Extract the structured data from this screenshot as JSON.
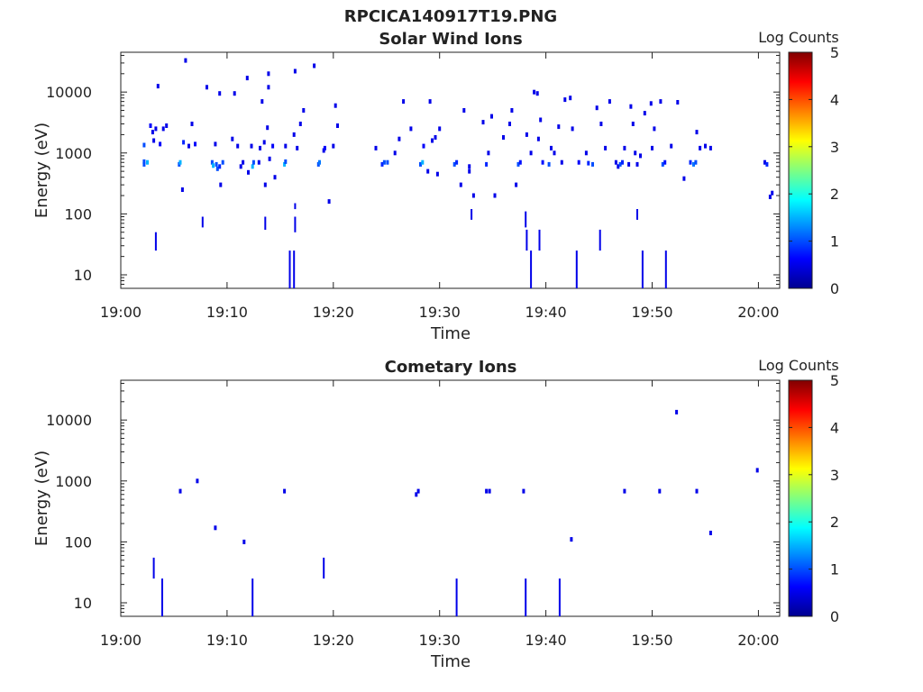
{
  "figure_title": "RPCICA140917T19.PNG",
  "colormap": [
    "#00008f",
    "#0000ff",
    "#0080ff",
    "#00ffff",
    "#80ff80",
    "#ffff00",
    "#ff8000",
    "#ff0000",
    "#800000"
  ],
  "chart_data": [
    {
      "type": "heatmap",
      "title": "Solar Wind Ions",
      "xlabel": "Time",
      "ylabel": "Energy (eV)",
      "x_unit": "minutes after 19:00",
      "xlim": [
        0,
        62
      ],
      "xticks": [
        0,
        10,
        20,
        30,
        40,
        50,
        60
      ],
      "xtick_labels": [
        "19:00",
        "19:10",
        "19:20",
        "19:30",
        "19:40",
        "19:50",
        "20:00"
      ],
      "yscale": "log",
      "ylim": [
        6,
        45000
      ],
      "yticks": [
        10,
        100,
        1000,
        10000
      ],
      "ytick_labels": [
        "10",
        "100",
        "1000",
        "10000"
      ],
      "colorbar": {
        "label": "Log Counts",
        "range": [
          0,
          5
        ],
        "ticks": [
          "0",
          "1",
          "2",
          "3",
          "4",
          "5"
        ]
      },
      "points": [
        [
          2.2,
          650,
          1
        ],
        [
          2.2,
          720,
          1
        ],
        [
          2.2,
          1350,
          1
        ],
        [
          2.5,
          700,
          1.5
        ],
        [
          2.8,
          2800,
          0.6
        ],
        [
          3.0,
          2200,
          0.5
        ],
        [
          3.1,
          1600,
          0.5
        ],
        [
          3.3,
          2500,
          0.5
        ],
        [
          3.5,
          12500,
          0.5
        ],
        [
          3.7,
          1400,
          0.6
        ],
        [
          4.0,
          2500,
          0.5
        ],
        [
          4.3,
          2800,
          0.5
        ],
        [
          5.5,
          650,
          1
        ],
        [
          5.6,
          700,
          1.5
        ],
        [
          5.8,
          250,
          0.5
        ],
        [
          5.9,
          1500,
          0.8
        ],
        [
          6.1,
          33000,
          0.5
        ],
        [
          6.4,
          1300,
          0.5
        ],
        [
          6.7,
          3000,
          0.5
        ],
        [
          7.0,
          1400,
          0.6
        ],
        [
          8.1,
          12000,
          0.5
        ],
        [
          8.6,
          700,
          1
        ],
        [
          8.7,
          620,
          1.5
        ],
        [
          8.9,
          1400,
          0.5
        ],
        [
          9.0,
          650,
          1
        ],
        [
          9.1,
          550,
          1
        ],
        [
          9.3,
          9500,
          0.5
        ],
        [
          9.3,
          600,
          0.8
        ],
        [
          9.4,
          300,
          0.5
        ],
        [
          9.6,
          700,
          1
        ],
        [
          10.5,
          1700,
          0.5
        ],
        [
          10.7,
          9500,
          0.5
        ],
        [
          11.0,
          1300,
          0.5
        ],
        [
          11.3,
          600,
          0.5
        ],
        [
          11.5,
          700,
          0.5
        ],
        [
          11.9,
          17000,
          0.5
        ],
        [
          12.0,
          480,
          0.5
        ],
        [
          12.3,
          1300,
          0.5
        ],
        [
          12.4,
          600,
          1.5
        ],
        [
          12.5,
          700,
          1
        ],
        [
          13.0,
          700,
          0.5
        ],
        [
          13.1,
          1200,
          0.5
        ],
        [
          13.3,
          7000,
          0.5
        ],
        [
          13.5,
          1500,
          0.5
        ],
        [
          13.6,
          300,
          0.5
        ],
        [
          13.9,
          20000,
          0.5
        ],
        [
          13.8,
          2600,
          0.5
        ],
        [
          13.9,
          12000,
          0.5
        ],
        [
          14.0,
          800,
          0.5
        ],
        [
          14.3,
          1300,
          0.6
        ],
        [
          14.5,
          400,
          0.5
        ],
        [
          15.4,
          650,
          1.5
        ],
        [
          15.5,
          720,
          1
        ],
        [
          15.5,
          1300,
          0.5
        ],
        [
          16.3,
          2000,
          0.5
        ],
        [
          16.4,
          22000,
          0.5
        ],
        [
          16.6,
          1200,
          0.5
        ],
        [
          16.9,
          3000,
          0.5
        ],
        [
          17.2,
          5000,
          0.5
        ],
        [
          18.2,
          27000,
          0.5
        ],
        [
          18.6,
          650,
          1
        ],
        [
          18.7,
          700,
          1.2
        ],
        [
          19.1,
          1100,
          0.5
        ],
        [
          19.2,
          1200,
          0.6
        ],
        [
          19.6,
          160,
          0.5
        ],
        [
          20.0,
          1300,
          0.5
        ],
        [
          20.2,
          6000,
          0.5
        ],
        [
          20.4,
          2800,
          0.5
        ],
        [
          24.0,
          1200,
          0.5
        ],
        [
          24.6,
          650,
          0.8
        ],
        [
          24.8,
          700,
          1
        ],
        [
          25.1,
          700,
          1
        ],
        [
          25.8,
          1000,
          0.5
        ],
        [
          26.2,
          1700,
          0.5
        ],
        [
          26.6,
          7000,
          0.5
        ],
        [
          27.3,
          2500,
          0.5
        ],
        [
          28.2,
          650,
          1
        ],
        [
          28.4,
          700,
          1.5
        ],
        [
          28.5,
          1300,
          0.6
        ],
        [
          28.9,
          500,
          0.5
        ],
        [
          29.1,
          7000,
          0.5
        ],
        [
          29.3,
          1600,
          0.5
        ],
        [
          29.6,
          1800,
          0.5
        ],
        [
          29.8,
          450,
          0.5
        ],
        [
          30.0,
          2500,
          0.5
        ],
        [
          31.4,
          650,
          1
        ],
        [
          31.6,
          700,
          0.8
        ],
        [
          32.0,
          300,
          0.5
        ],
        [
          32.3,
          5000,
          0.5
        ],
        [
          32.8,
          500,
          0.5
        ],
        [
          32.8,
          600,
          0.5
        ],
        [
          33.2,
          200,
          0.5
        ],
        [
          34.1,
          3200,
          0.5
        ],
        [
          34.4,
          650,
          0.8
        ],
        [
          34.6,
          1000,
          0.5
        ],
        [
          34.9,
          4000,
          0.5
        ],
        [
          35.2,
          200,
          0.5
        ],
        [
          36.0,
          1800,
          0.5
        ],
        [
          36.6,
          3000,
          0.5
        ],
        [
          36.8,
          5000,
          0.5
        ],
        [
          37.2,
          300,
          0.5
        ],
        [
          37.4,
          650,
          1
        ],
        [
          37.6,
          700,
          0.7
        ],
        [
          38.2,
          2000,
          0.5
        ],
        [
          38.6,
          1000,
          0.5
        ],
        [
          38.9,
          10000,
          0.5
        ],
        [
          39.2,
          9500,
          0.5
        ],
        [
          39.3,
          1700,
          0.5
        ],
        [
          39.5,
          3500,
          0.5
        ],
        [
          39.7,
          700,
          0.7
        ],
        [
          40.3,
          650,
          1
        ],
        [
          40.5,
          1200,
          0.5
        ],
        [
          40.8,
          1000,
          0.5
        ],
        [
          41.2,
          2700,
          0.5
        ],
        [
          41.5,
          700,
          0.5
        ],
        [
          41.8,
          7500,
          0.5
        ],
        [
          42.3,
          8000,
          0.5
        ],
        [
          42.5,
          2500,
          0.5
        ],
        [
          43.1,
          700,
          0.6
        ],
        [
          43.8,
          1000,
          0.5
        ],
        [
          44.0,
          680,
          0.8
        ],
        [
          44.4,
          650,
          1
        ],
        [
          44.8,
          5500,
          0.5
        ],
        [
          45.2,
          3000,
          0.5
        ],
        [
          45.6,
          1200,
          0.5
        ],
        [
          46.0,
          7000,
          0.5
        ],
        [
          46.6,
          700,
          0.5
        ],
        [
          46.8,
          600,
          0.5
        ],
        [
          47.0,
          650,
          1
        ],
        [
          47.2,
          700,
          0.8
        ],
        [
          47.4,
          1200,
          0.5
        ],
        [
          47.8,
          650,
          0.5
        ],
        [
          48.0,
          5800,
          0.5
        ],
        [
          48.2,
          3000,
          0.5
        ],
        [
          48.4,
          1000,
          0.5
        ],
        [
          48.6,
          650,
          0.5
        ],
        [
          48.9,
          900,
          0.5
        ],
        [
          49.3,
          4500,
          0.5
        ],
        [
          49.9,
          6500,
          0.5
        ],
        [
          50.0,
          1200,
          0.5
        ],
        [
          50.2,
          2500,
          0.5
        ],
        [
          50.8,
          7000,
          0.5
        ],
        [
          51.0,
          650,
          1
        ],
        [
          51.2,
          700,
          0.7
        ],
        [
          51.8,
          1300,
          0.5
        ],
        [
          52.4,
          6800,
          0.5
        ],
        [
          53.0,
          380,
          0.5
        ],
        [
          53.6,
          700,
          0.8
        ],
        [
          53.9,
          650,
          1.2
        ],
        [
          54.1,
          700,
          1
        ],
        [
          54.2,
          2200,
          0.5
        ],
        [
          54.5,
          1200,
          0.5
        ],
        [
          55.0,
          1300,
          0.5
        ],
        [
          55.5,
          1200,
          0.5
        ],
        [
          60.6,
          700,
          0.5
        ],
        [
          60.8,
          650,
          0.8
        ],
        [
          61.1,
          190,
          0.5
        ],
        [
          61.3,
          220,
          0.5
        ]
      ],
      "streaks": [
        [
          3.3,
          25,
          50,
          0.5
        ],
        [
          7.7,
          60,
          90,
          0.5
        ],
        [
          13.6,
          55,
          90,
          0.5
        ],
        [
          15.9,
          6,
          25,
          0.5
        ],
        [
          16.3,
          6,
          25,
          0.5
        ],
        [
          16.4,
          50,
          90,
          0.5
        ],
        [
          16.4,
          120,
          150,
          0.5
        ],
        [
          33.0,
          80,
          120,
          0.5
        ],
        [
          38.1,
          60,
          110,
          0.5
        ],
        [
          38.2,
          25,
          55,
          0.5
        ],
        [
          38.6,
          6,
          25,
          0.5
        ],
        [
          39.4,
          25,
          55,
          0.5
        ],
        [
          42.9,
          6,
          25,
          0.5
        ],
        [
          45.1,
          25,
          55,
          0.5
        ],
        [
          48.6,
          80,
          120,
          0.5
        ],
        [
          49.1,
          6,
          25,
          0.5
        ],
        [
          51.3,
          6,
          25,
          0.5
        ]
      ]
    },
    {
      "type": "heatmap",
      "title": "Cometary Ions",
      "xlabel": "Time",
      "ylabel": "Energy (eV)",
      "x_unit": "minutes after 19:00",
      "xlim": [
        0,
        62
      ],
      "xticks": [
        0,
        10,
        20,
        30,
        40,
        50,
        60
      ],
      "xtick_labels": [
        "19:00",
        "19:10",
        "19:20",
        "19:30",
        "19:40",
        "19:50",
        "20:00"
      ],
      "yscale": "log",
      "ylim": [
        6,
        45000
      ],
      "yticks": [
        10,
        100,
        1000,
        10000
      ],
      "ytick_labels": [
        "10",
        "100",
        "1000",
        "10000"
      ],
      "colorbar": {
        "label": "Log Counts",
        "range": [
          0,
          5
        ],
        "ticks": [
          "0",
          "1",
          "2",
          "3",
          "4",
          "5"
        ]
      },
      "points": [
        [
          5.6,
          680,
          0.5
        ],
        [
          7.2,
          1000,
          0.5
        ],
        [
          8.9,
          170,
          0.5
        ],
        [
          11.6,
          100,
          0.5
        ],
        [
          15.4,
          680,
          0.5
        ],
        [
          27.8,
          600,
          0.5
        ],
        [
          28.0,
          680,
          0.5
        ],
        [
          34.4,
          680,
          0.5
        ],
        [
          34.7,
          680,
          0.5
        ],
        [
          37.9,
          680,
          0.5
        ],
        [
          42.4,
          110,
          0.5
        ],
        [
          47.4,
          680,
          0.5
        ],
        [
          50.7,
          680,
          0.5
        ],
        [
          52.3,
          13500,
          0.5
        ],
        [
          54.2,
          680,
          0.5
        ],
        [
          55.5,
          140,
          0.5
        ],
        [
          59.9,
          1500,
          0.5
        ]
      ],
      "streaks": [
        [
          3.1,
          25,
          55,
          0.5
        ],
        [
          3.9,
          6,
          25,
          0.5
        ],
        [
          12.4,
          6,
          25,
          0.5
        ],
        [
          19.1,
          25,
          55,
          0.5
        ],
        [
          31.6,
          6,
          25,
          0.5
        ],
        [
          38.1,
          6,
          25,
          0.5
        ],
        [
          41.3,
          6,
          25,
          0.5
        ]
      ]
    }
  ]
}
